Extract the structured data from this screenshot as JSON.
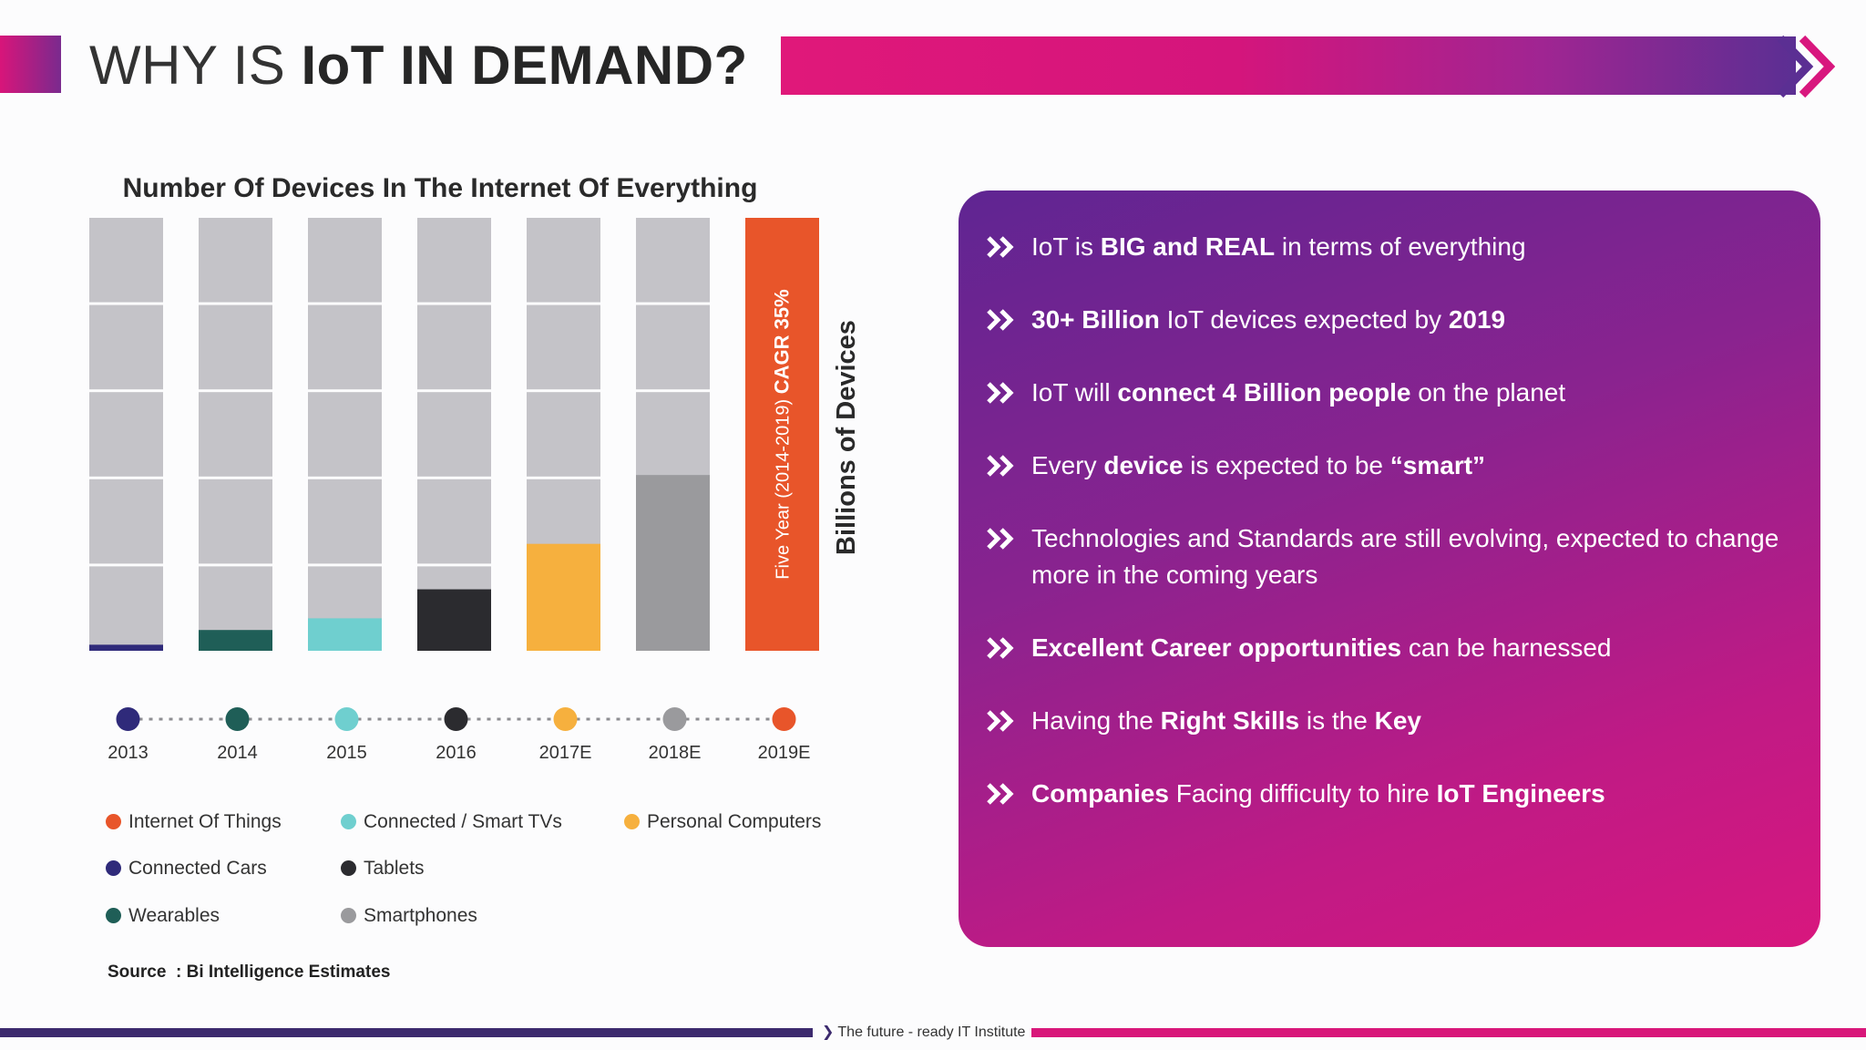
{
  "header": {
    "title_light": "WHY IS ",
    "title_bold": "IoT IN DEMAND?"
  },
  "chart_data": {
    "type": "bar",
    "title": "Number Of Devices In The Internet Of Everything",
    "ylabel": "Billions of Devices",
    "categories": [
      "2013",
      "2014",
      "2015",
      "2016",
      "2017E",
      "2018E",
      "2019E"
    ],
    "highlight_fraction": [
      0.014,
      0.048,
      0.075,
      0.142,
      0.247,
      0.406,
      1.0
    ],
    "bar_colors": [
      "#2f2a7a",
      "#1f5e57",
      "#6fcfcf",
      "#2b2b2f",
      "#f6b03e",
      "#9a9a9d",
      "#e8552a"
    ],
    "highlight_bar_annotation": {
      "prefix": "Five Year (2014-2019) ",
      "emphasis": "CAGR 35%"
    },
    "legend": [
      {
        "label": "Internet Of Things",
        "color": "#e8552a"
      },
      {
        "label": "Connected / Smart TVs",
        "color": "#6fcfcf"
      },
      {
        "label": "Personal Computers",
        "color": "#f6b03e"
      },
      {
        "label": "Connected Cars",
        "color": "#2f2a7a"
      },
      {
        "label": "Tablets",
        "color": "#2b2b2f"
      },
      {
        "label": "Wearables",
        "color": "#1f5e57"
      },
      {
        "label": "Smartphones",
        "color": "#9a9a9d"
      }
    ],
    "source_label": "Source",
    "source_value": "Bi Intelligence Estimates",
    "grid_color": "#c4c3c8"
  },
  "panel": {
    "bullets": [
      {
        "parts": [
          {
            "t": "IoT is "
          },
          {
            "t": "BIG and REAL",
            "b": true
          },
          {
            "t": " in terms of everything"
          }
        ]
      },
      {
        "parts": [
          {
            "t": "30+ Billion",
            "b": true
          },
          {
            "t": " IoT devices expected by "
          },
          {
            "t": "2019",
            "b": true
          }
        ]
      },
      {
        "parts": [
          {
            "t": "IoT will "
          },
          {
            "t": "connect 4 Billion people",
            "b": true
          },
          {
            "t": " on the planet"
          }
        ]
      },
      {
        "parts": [
          {
            "t": "Every "
          },
          {
            "t": "device",
            "b": true
          },
          {
            "t": " is expected to be "
          },
          {
            "t": "“smart”",
            "b": true
          }
        ]
      },
      {
        "parts": [
          {
            "t": "Technologies and Standards are still evolving, expected to change more in the coming years"
          }
        ]
      },
      {
        "parts": [
          {
            "t": "Excellent Career opportunities",
            "b": true
          },
          {
            "t": " can be harnessed"
          }
        ]
      },
      {
        "parts": [
          {
            "t": "Having the "
          },
          {
            "t": "Right Skills",
            "b": true
          },
          {
            "t": " is the "
          },
          {
            "t": "Key",
            "b": true
          }
        ]
      },
      {
        "parts": [
          {
            "t": "Companies",
            "b": true
          },
          {
            "t": " Facing difficulty to hire "
          },
          {
            "t": "IoT Engineers",
            "b": true
          }
        ]
      }
    ],
    "bullet_icon": "double-chevron-right-icon"
  },
  "footer": {
    "tagline": "The future - ready IT Institute",
    "left_color": "#3c2a6e",
    "right_color": "#d8177a"
  }
}
